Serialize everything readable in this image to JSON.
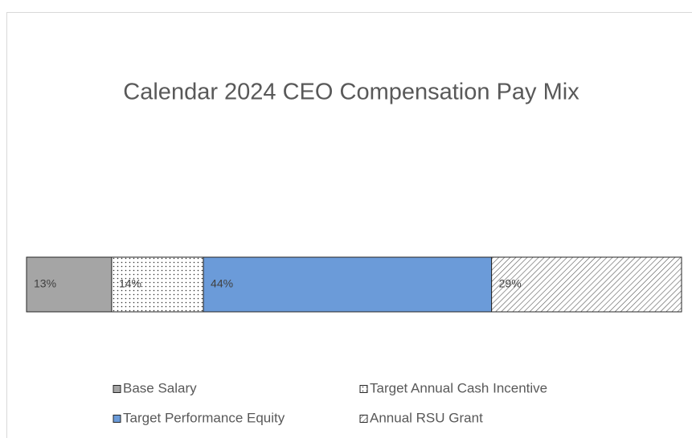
{
  "chart_data": {
    "type": "stacked-bar",
    "orientation": "horizontal",
    "title": "Calendar 2024 CEO Compensation Pay Mix",
    "xlim": [
      0,
      100
    ],
    "legend": "bottom",
    "series": [
      {
        "name": "Base Salary",
        "color": "#a5a5a5",
        "pattern": "solid",
        "values": [
          13
        ],
        "value_labels": [
          "13%"
        ]
      },
      {
        "name": "Target Annual Cash Incentive",
        "color": "#ffffff",
        "pattern": "dots",
        "values": [
          14
        ],
        "value_labels": [
          "14%"
        ]
      },
      {
        "name": "Target Performance Equity",
        "color": "#6b9bd9",
        "pattern": "solid",
        "values": [
          44
        ],
        "value_labels": [
          "44%"
        ]
      },
      {
        "name": "Annual RSU Grant",
        "color": "#ffffff",
        "pattern": "diagonal",
        "values": [
          29
        ],
        "value_labels": [
          "29%"
        ]
      }
    ]
  }
}
